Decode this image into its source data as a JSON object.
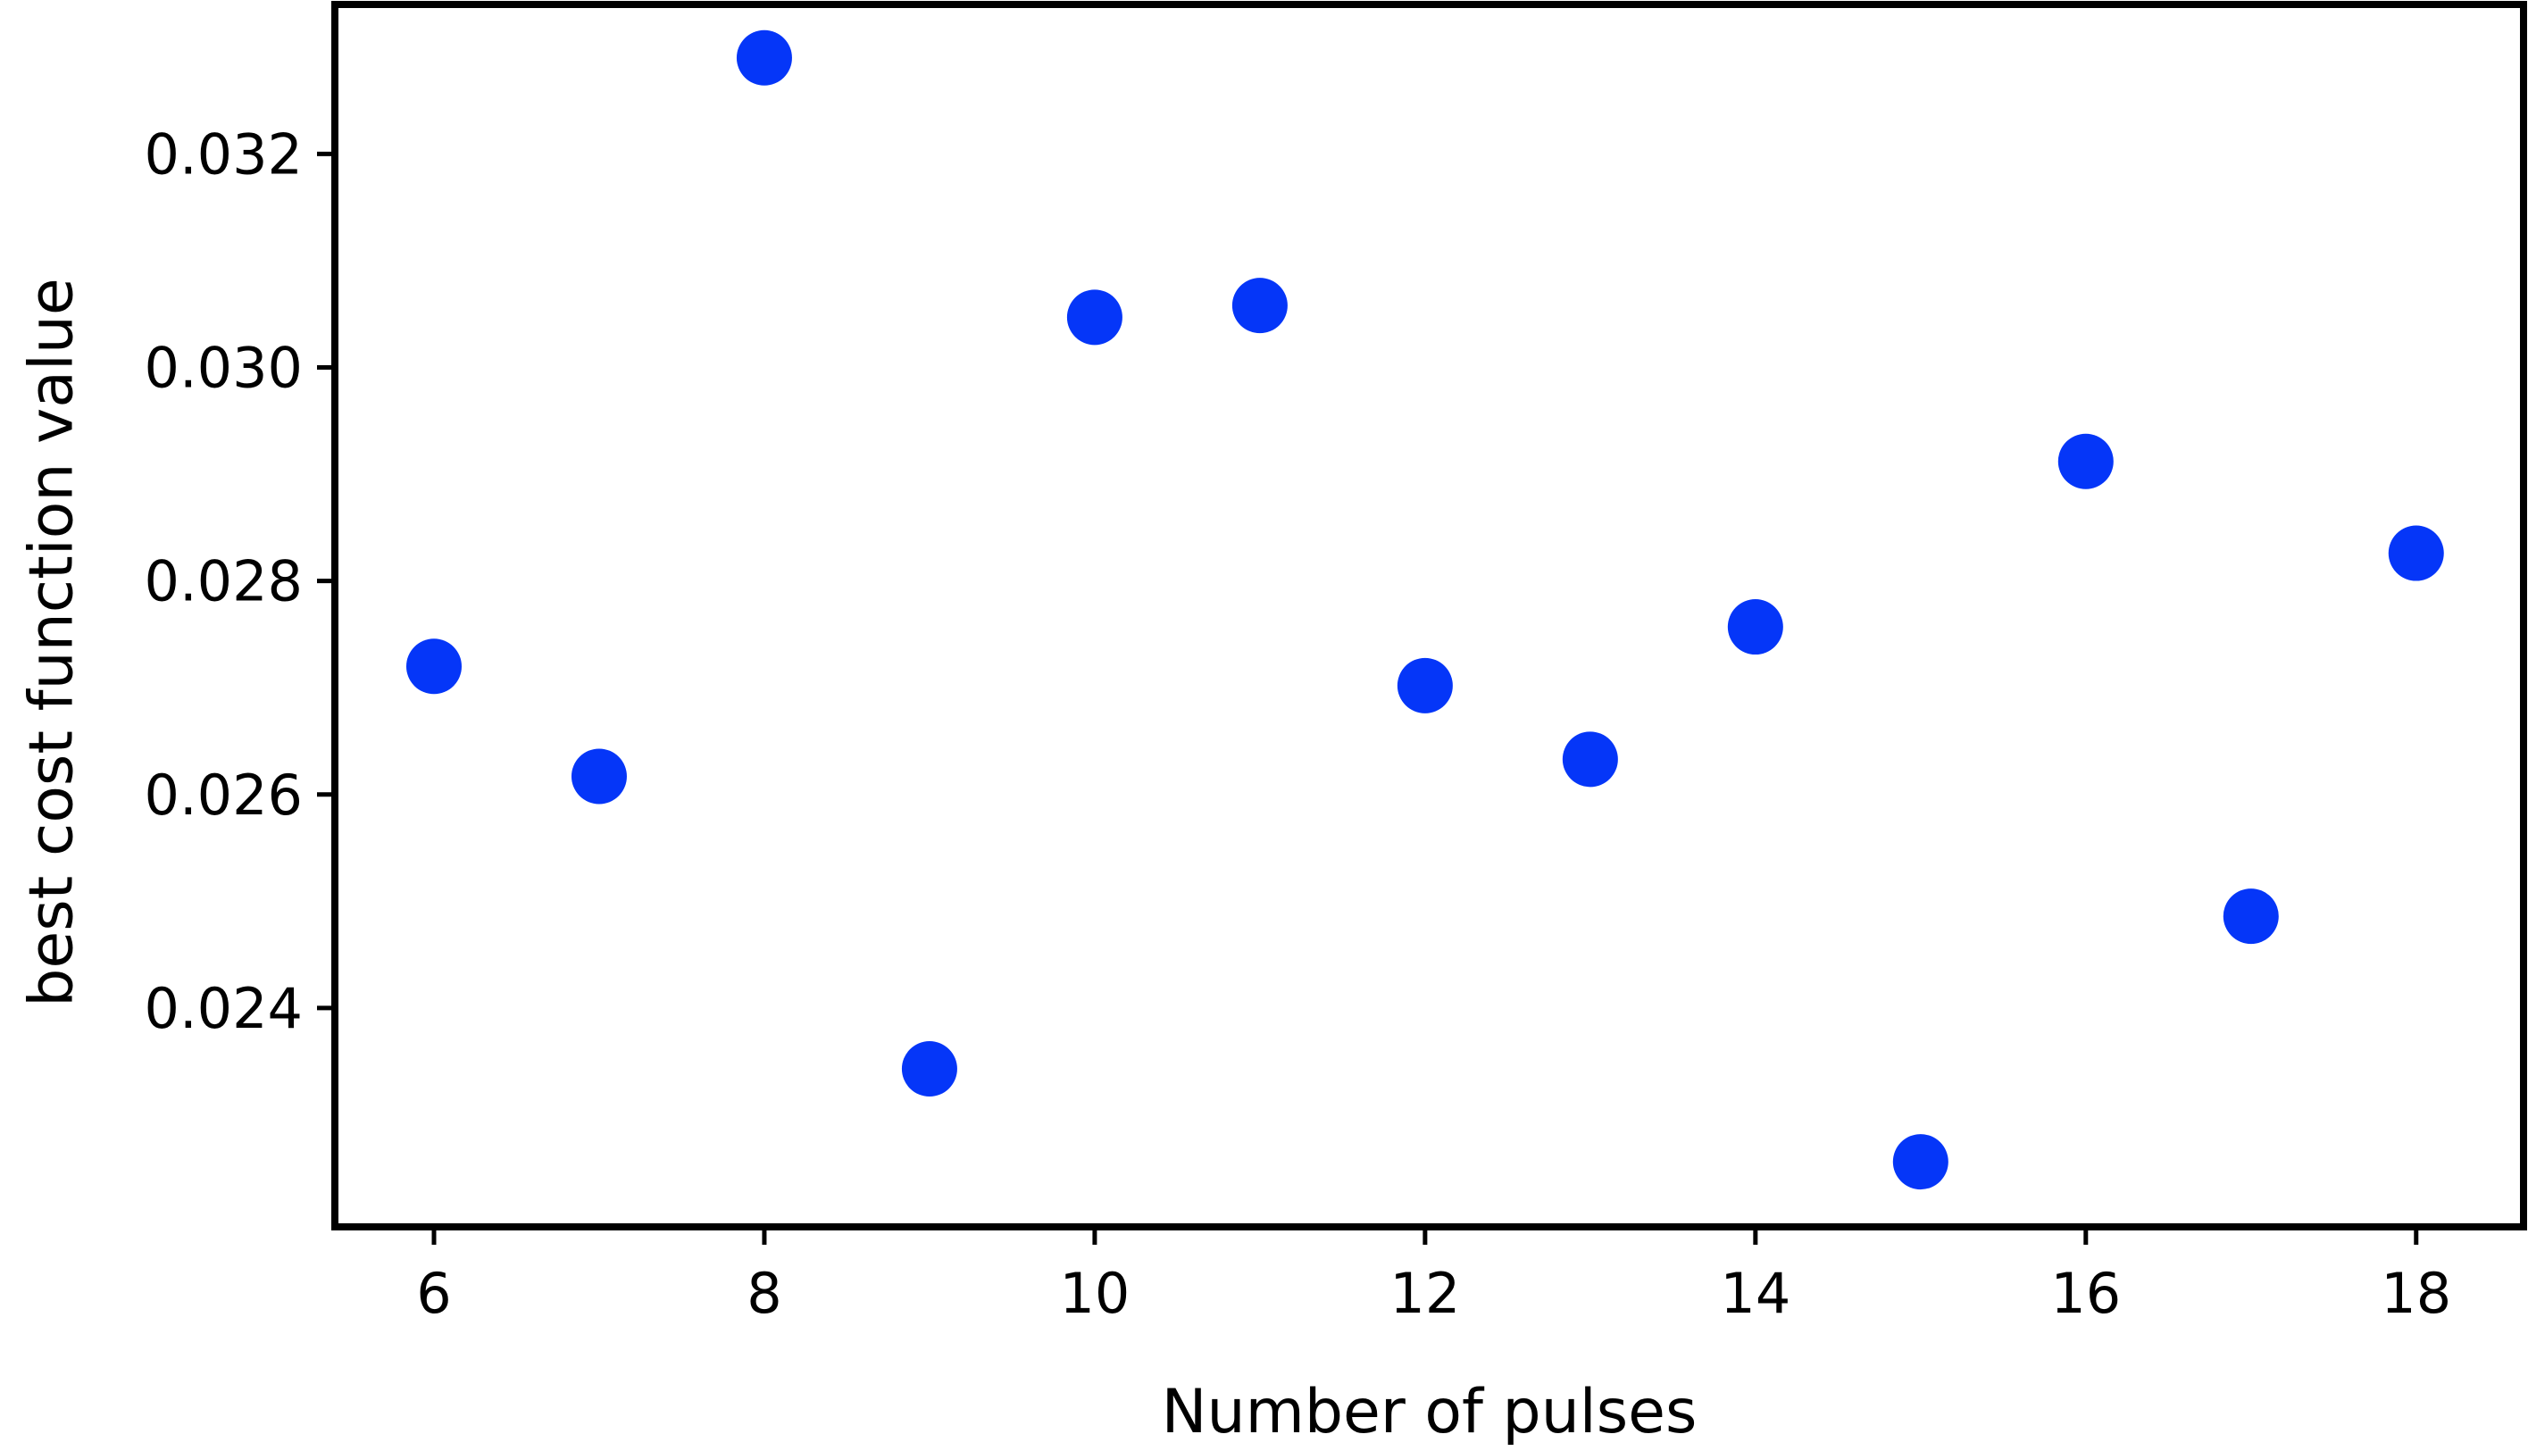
{
  "chart_data": {
    "type": "scatter",
    "title": "",
    "xlabel": "Number of pulses",
    "ylabel": "best cost function value",
    "xlim": [
      5.4,
      18.65
    ],
    "ylim": [
      0.02195,
      0.0334
    ],
    "x_ticks": [
      6,
      8,
      10,
      12,
      14,
      16,
      18
    ],
    "x_tick_labels": [
      "6",
      "8",
      "10",
      "12",
      "14",
      "16",
      "18"
    ],
    "y_ticks": [
      0.024,
      0.026,
      0.028,
      0.03,
      0.032
    ],
    "y_tick_labels": [
      "0.024",
      "0.026",
      "0.028",
      "0.030",
      "0.032"
    ],
    "grid": false,
    "legend": "none",
    "series": [
      {
        "color": "#0536f8",
        "points": [
          {
            "x": 6,
            "y": 0.0272
          },
          {
            "x": 7,
            "y": 0.02617
          },
          {
            "x": 8,
            "y": 0.0329
          },
          {
            "x": 9,
            "y": 0.02343
          },
          {
            "x": 10,
            "y": 0.03047
          },
          {
            "x": 11,
            "y": 0.03058
          },
          {
            "x": 12,
            "y": 0.02702
          },
          {
            "x": 13,
            "y": 0.02633
          },
          {
            "x": 14,
            "y": 0.02757
          },
          {
            "x": 15,
            "y": 0.02256
          },
          {
            "x": 16,
            "y": 0.02912
          },
          {
            "x": 17,
            "y": 0.02486
          },
          {
            "x": 18,
            "y": 0.02826
          }
        ]
      }
    ]
  }
}
